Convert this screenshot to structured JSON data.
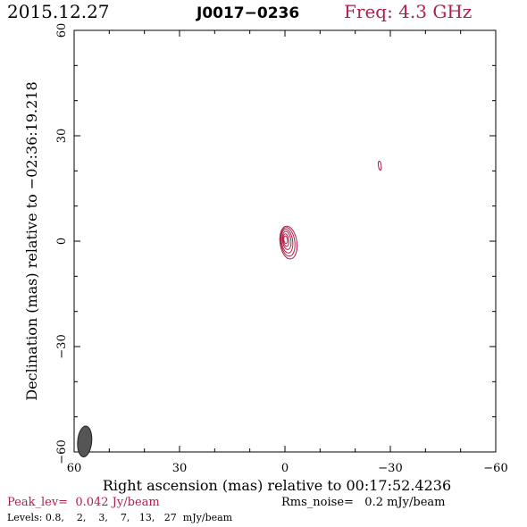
{
  "header": {
    "date": "2015.12.27",
    "source": "J0017−0236",
    "frequency": "Freq: 4.3 GHz"
  },
  "footer": {
    "peak": "Peak_lev=  0.042 Jy/beam",
    "rms": "Rms_noise=   0.2 mJy/beam",
    "levels": "Levels: 0.8,    2,    3,    7,   13,   27  mJy/beam"
  },
  "colors": {
    "accent": "#b0204a",
    "beam": "#555555",
    "axis": "#000000"
  },
  "chart_data": {
    "type": "contour",
    "xlabel": "Right ascension (mas) relative to 00:17:52.4236",
    "ylabel": "Declination (mas) relative to −02:36:19.218",
    "xlim": [
      60,
      -60
    ],
    "ylim": [
      -60,
      60
    ],
    "x_ticks": [
      60,
      30,
      0,
      -30,
      -60
    ],
    "y_ticks": [
      -60,
      -30,
      0,
      30,
      60
    ],
    "x_tick_labels": [
      "60",
      "30",
      "0",
      "−30",
      "−60"
    ],
    "y_tick_labels": [
      "−60",
      "−30",
      "0",
      "30",
      "60"
    ],
    "levels_mJy": [
      0.8,
      2,
      3,
      7,
      13,
      27
    ],
    "components": [
      {
        "name": "core",
        "x": -0.5,
        "y": 0,
        "contours_mas": [
          {
            "rx": 2.4,
            "ry": 4.7,
            "dx": -0.5,
            "dy": -0.4
          },
          {
            "rx": 2.0,
            "ry": 4.1,
            "dx": -0.3,
            "dy": -0.2
          },
          {
            "rx": 1.6,
            "ry": 3.4,
            "dx": -0.1,
            "dy": 0.0
          },
          {
            "rx": 1.2,
            "ry": 2.6,
            "dx": 0.0,
            "dy": 0.2
          },
          {
            "rx": 0.8,
            "ry": 1.8,
            "dx": 0.2,
            "dy": 0.3
          },
          {
            "rx": 0.5,
            "ry": 1.1,
            "dx": 0.3,
            "dy": 0.4
          }
        ]
      },
      {
        "name": "knot",
        "x": -27,
        "y": 21.5,
        "contours_mas": [
          {
            "rx": 0.4,
            "ry": 1.3,
            "dx": 0,
            "dy": 0
          }
        ]
      }
    ],
    "beam": {
      "x": 57,
      "y": -57,
      "major_mas": 4.4,
      "minor_mas": 2.0,
      "pa_deg": 5
    }
  }
}
